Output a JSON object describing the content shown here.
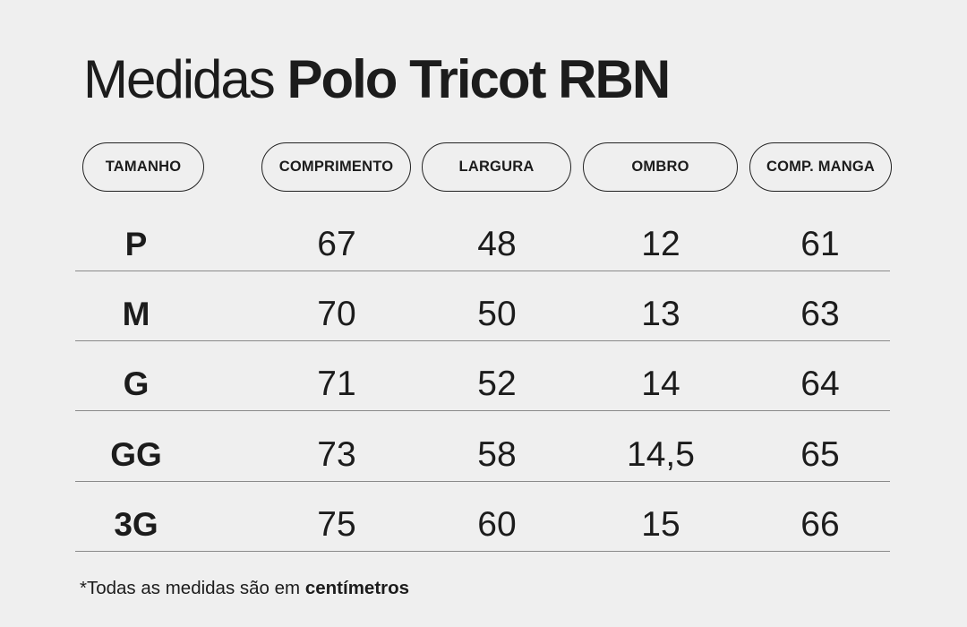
{
  "title": {
    "light": "Medidas",
    "bold": "Polo Tricot RBN"
  },
  "headers": [
    "TAMANHO",
    "COMPRIMENTO",
    "LARGURA",
    "OMBRO",
    "COMP. MANGA"
  ],
  "rows": [
    {
      "size": "P",
      "values": [
        "67",
        "48",
        "12",
        "61"
      ]
    },
    {
      "size": "M",
      "values": [
        "70",
        "50",
        "13",
        "63"
      ]
    },
    {
      "size": "G",
      "values": [
        "71",
        "52",
        "14",
        "64"
      ]
    },
    {
      "size": "GG",
      "values": [
        "73",
        "58",
        "14,5",
        "65"
      ]
    },
    {
      "size": "3G",
      "values": [
        "75",
        "60",
        "15",
        "66"
      ]
    }
  ],
  "footnote": {
    "text": "*Todas as medidas são em",
    "bold": "centímetros"
  },
  "colors": {
    "background": "#efefef",
    "text": "#1c1c1c",
    "rule": "#8a8a8a"
  }
}
